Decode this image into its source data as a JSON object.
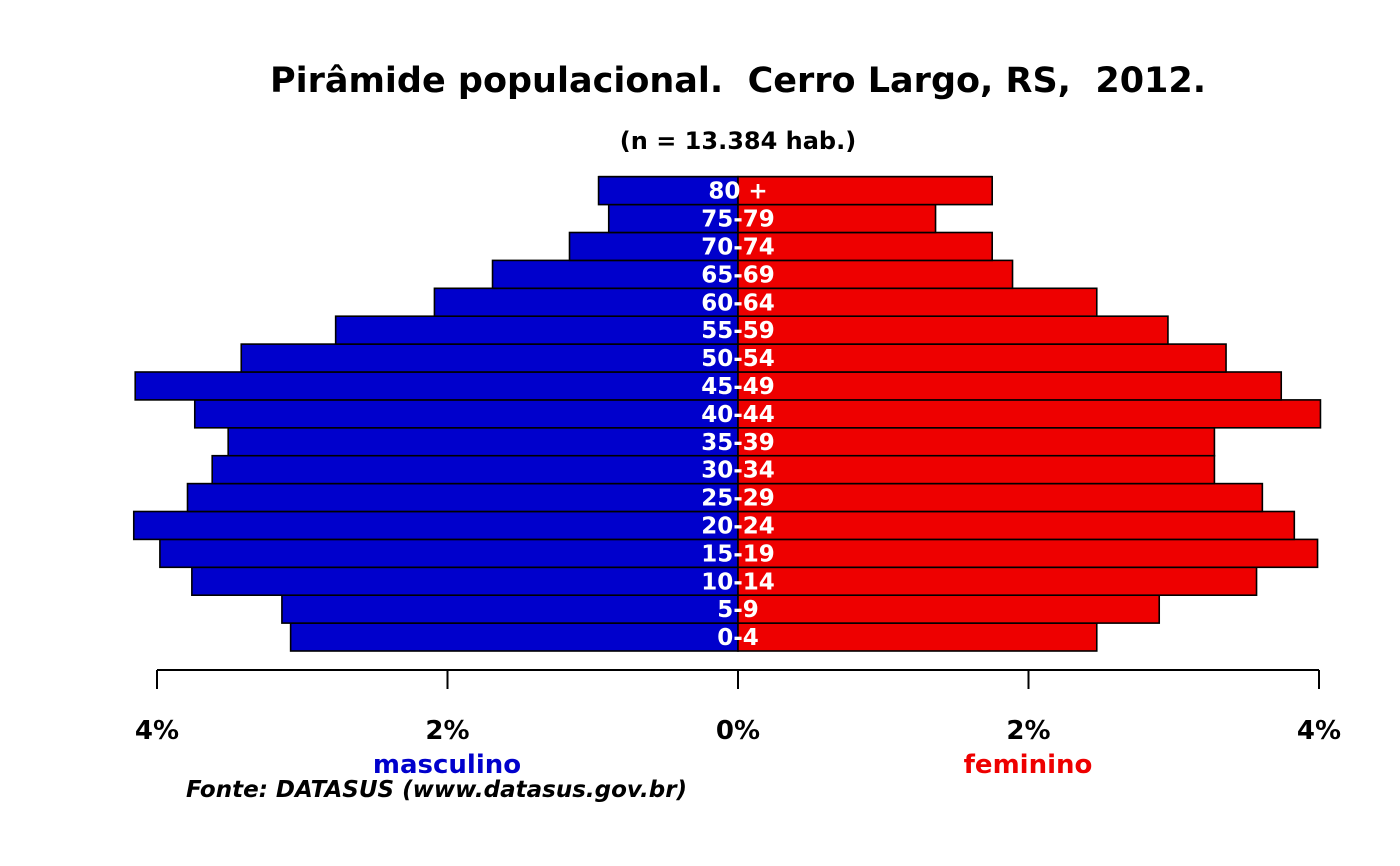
{
  "chart_data": {
    "type": "bar",
    "orientation": "horizontal",
    "title": "Pirâmide populacional.  Cerro Largo, RS,  2012.",
    "subtitle": "(n = 13.384 hab.)",
    "source": "Fonte: DATASUS (www.datasus.gov.br)",
    "categories": [
      "0-4",
      "5-9",
      "10-14",
      "15-19",
      "20-24",
      "25-29",
      "30-34",
      "35-39",
      "40-44",
      "45-49",
      "50-54",
      "55-59",
      "60-64",
      "65-69",
      "70-74",
      "75-79",
      "80 +"
    ],
    "series": [
      {
        "name": "masculino",
        "color": "#0000cc",
        "values": [
          3.08,
          3.14,
          3.76,
          3.98,
          4.16,
          3.79,
          3.62,
          3.51,
          3.74,
          4.15,
          3.42,
          2.77,
          2.09,
          1.69,
          1.16,
          0.89,
          0.96
        ]
      },
      {
        "name": "feminino",
        "color": "#ee0000",
        "values": [
          2.47,
          2.9,
          3.57,
          3.99,
          3.83,
          3.61,
          3.28,
          3.28,
          4.01,
          3.74,
          3.36,
          2.96,
          2.47,
          1.89,
          1.75,
          1.36,
          1.75
        ]
      }
    ],
    "x_ticks": [
      "4%",
      "2%",
      "0%",
      "2%",
      "4%"
    ],
    "x_tick_values": [
      -4,
      -2,
      0,
      2,
      4
    ],
    "xlim": [
      -4,
      4
    ],
    "grid": false,
    "legend": "none"
  }
}
